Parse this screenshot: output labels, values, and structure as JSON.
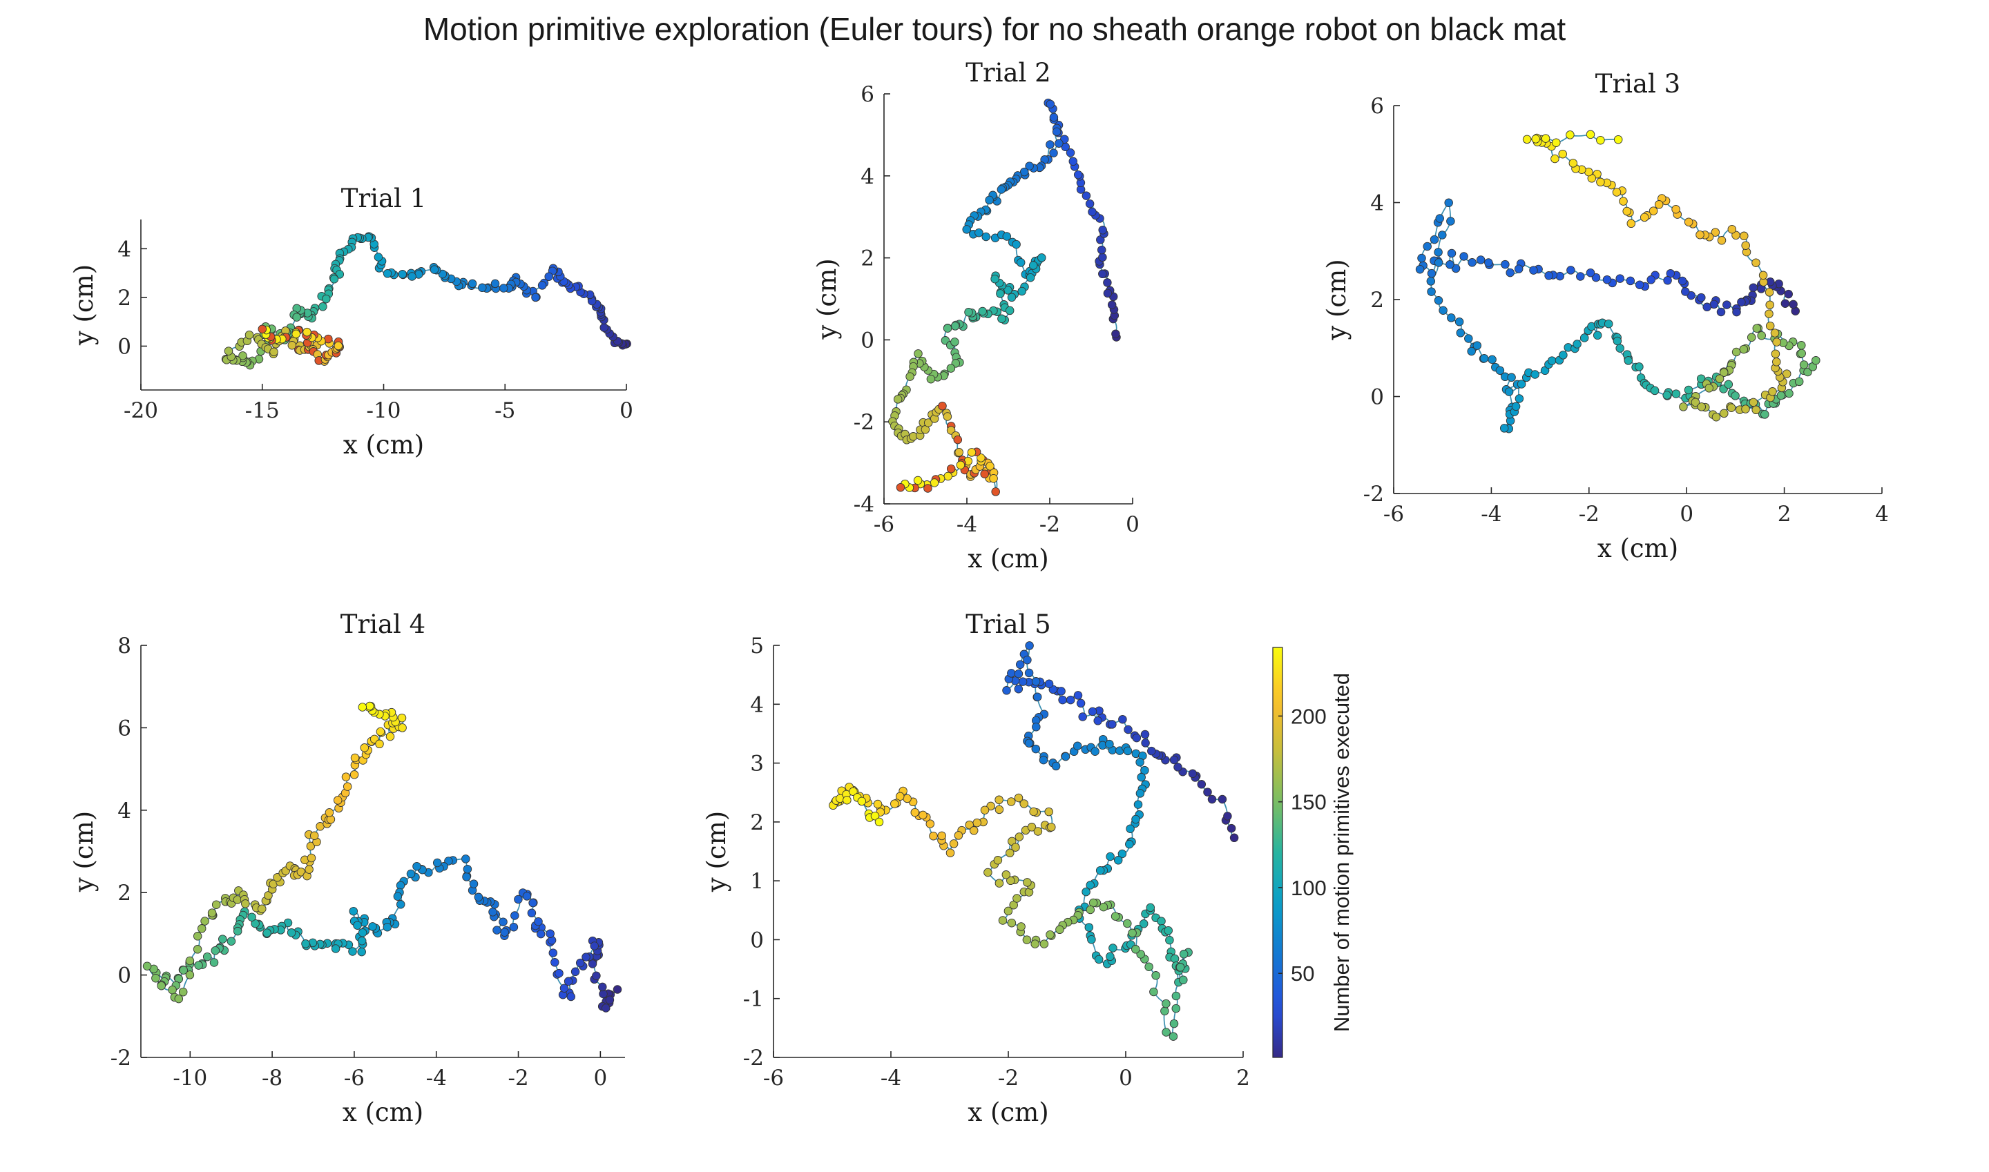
{
  "figure": {
    "title": "Motion primitive exploration (Euler tours) for no sheath orange robot on black mat"
  },
  "colorbar": {
    "label": "Number of motion primitives executed",
    "colormap": "parula",
    "range": [
      1,
      240
    ],
    "ticks": [
      50,
      100,
      150,
      200
    ]
  },
  "chart_data": [
    {
      "type": "scatter",
      "title": "Trial 1",
      "xlabel": "x (cm)",
      "ylabel": "y (cm)",
      "xlim": [
        -20,
        0
      ],
      "ylim": [
        -1.8,
        5.2
      ],
      "xticks": [
        -20,
        -15,
        -10,
        -5,
        0
      ],
      "yticks": [
        0,
        2,
        4
      ],
      "waypoints": [
        [
          0,
          0
        ],
        [
          -0.5,
          0.2
        ],
        [
          -1,
          1.2
        ],
        [
          -1.2,
          1.7
        ],
        [
          -2,
          2.4
        ],
        [
          -2.6,
          2.6
        ],
        [
          -3,
          3.2
        ],
        [
          -3.8,
          2
        ],
        [
          -4.5,
          2.7
        ],
        [
          -5,
          2.4
        ],
        [
          -6,
          2.5
        ],
        [
          -7,
          2.6
        ],
        [
          -8,
          3.2
        ],
        [
          -9,
          2.9
        ],
        [
          -10,
          3.1
        ],
        [
          -10.5,
          4.4
        ],
        [
          -11,
          4.4
        ],
        [
          -11.8,
          3.7
        ],
        [
          -12,
          3
        ],
        [
          -12.5,
          2
        ],
        [
          -13,
          1.2
        ],
        [
          -13.5,
          1.5
        ],
        [
          -14,
          0.3
        ],
        [
          -14.8,
          0.8
        ],
        [
          -15.3,
          -0.7
        ],
        [
          -16,
          -0.5
        ],
        [
          -16.5,
          -0.6
        ],
        [
          -15.5,
          0.5
        ],
        [
          -14.6,
          -0.3
        ],
        [
          -14,
          0.6
        ],
        [
          -13.5,
          -0.2
        ],
        [
          -13,
          0.1
        ],
        [
          -12.5,
          -0.6
        ],
        [
          -12,
          -0.2
        ],
        [
          -11.8,
          0.1
        ],
        [
          -12.8,
          0.4
        ],
        [
          -13.5,
          0.6
        ],
        [
          -14.5,
          0.2
        ],
        [
          -15,
          0.7
        ]
      ]
    },
    {
      "type": "scatter",
      "title": "Trial 2",
      "xlabel": "x (cm)",
      "ylabel": "y (cm)",
      "xlim": [
        -6,
        0
      ],
      "ylim": [
        -4,
        6
      ],
      "xticks": [
        -6,
        -4,
        -2,
        0
      ],
      "yticks": [
        -4,
        -2,
        0,
        2,
        4,
        6
      ],
      "waypoints": [
        [
          -0.4,
          0
        ],
        [
          -0.5,
          1
        ],
        [
          -0.8,
          1.8
        ],
        [
          -0.7,
          2.8
        ],
        [
          -1.2,
          3.6
        ],
        [
          -1.5,
          4.5
        ],
        [
          -2,
          5.8
        ],
        [
          -1.8,
          4.8
        ],
        [
          -2.3,
          4.2
        ],
        [
          -2.8,
          4
        ],
        [
          -3.2,
          3.6
        ],
        [
          -3.6,
          3.2
        ],
        [
          -4,
          2.7
        ],
        [
          -3,
          2.5
        ],
        [
          -2.5,
          1.5
        ],
        [
          -2.2,
          2
        ],
        [
          -2.8,
          1
        ],
        [
          -3.3,
          1.5
        ],
        [
          -3,
          0.6
        ],
        [
          -3.6,
          0.7
        ],
        [
          -4,
          0.5
        ],
        [
          -4.5,
          0.2
        ],
        [
          -4.2,
          -0.5
        ],
        [
          -4.8,
          -1
        ],
        [
          -5.2,
          -0.4
        ],
        [
          -5.5,
          -1.3
        ],
        [
          -5.8,
          -2
        ],
        [
          -5.4,
          -2.5
        ],
        [
          -5,
          -2
        ],
        [
          -4.6,
          -1.6
        ],
        [
          -4.2,
          -2.5
        ],
        [
          -4,
          -3.3
        ],
        [
          -3.6,
          -3
        ],
        [
          -3.3,
          -3.5
        ],
        [
          -3.8,
          -2.7
        ],
        [
          -4.4,
          -3.3
        ],
        [
          -5,
          -3.5
        ],
        [
          -5.6,
          -3.6
        ]
      ]
    },
    {
      "type": "scatter",
      "title": "Trial 3",
      "xlabel": "x (cm)",
      "ylabel": "y (cm)",
      "xlim": [
        -6,
        4
      ],
      "ylim": [
        -2,
        6
      ],
      "xticks": [
        -6,
        -4,
        -2,
        0,
        2,
        4
      ],
      "yticks": [
        -2,
        0,
        2,
        4,
        6
      ],
      "waypoints": [
        [
          2.2,
          1.8
        ],
        [
          1.8,
          2.4
        ],
        [
          1.4,
          2.1
        ],
        [
          1,
          1.8
        ],
        [
          0.3,
          2
        ],
        [
          -0.2,
          2.5
        ],
        [
          -1,
          2.3
        ],
        [
          -2,
          2.5
        ],
        [
          -3,
          2.6
        ],
        [
          -4,
          2.7
        ],
        [
          -4.8,
          2.8
        ],
        [
          -5.5,
          2.6
        ],
        [
          -4.9,
          3.9
        ],
        [
          -5.2,
          2.1
        ],
        [
          -4.5,
          1.2
        ],
        [
          -4,
          0.7
        ],
        [
          -3.5,
          0.2
        ],
        [
          -3.7,
          -0.7
        ],
        [
          -3.3,
          0.4
        ],
        [
          -2.6,
          0.8
        ],
        [
          -2,
          1.3
        ],
        [
          -1.6,
          1.4
        ],
        [
          -1.2,
          0.8
        ],
        [
          -0.8,
          0.2
        ],
        [
          -0.2,
          0
        ],
        [
          0.5,
          0.4
        ],
        [
          1,
          0
        ],
        [
          1.6,
          -0.3
        ],
        [
          2,
          0
        ],
        [
          2.6,
          0.6
        ],
        [
          2.2,
          1.1
        ],
        [
          1.5,
          1.4
        ],
        [
          1,
          0.8
        ],
        [
          0.7,
          0.4
        ],
        [
          0,
          -0.1
        ],
        [
          0.6,
          -0.3
        ],
        [
          1.3,
          -0.2
        ],
        [
          2,
          0.3
        ],
        [
          1.8,
          0.9
        ],
        [
          1.7,
          2.2
        ],
        [
          1.1,
          3.4
        ],
        [
          0.4,
          3.3
        ],
        [
          -0.4,
          4.1
        ],
        [
          -1.1,
          3.6
        ],
        [
          -1.5,
          4.4
        ],
        [
          -2.1,
          4.6
        ],
        [
          -2.9,
          5.2
        ],
        [
          -3.2,
          5.3
        ],
        [
          -1.4,
          5.3
        ]
      ]
    },
    {
      "type": "scatter",
      "title": "Trial 4",
      "xlabel": "x (cm)",
      "ylabel": "y (cm)",
      "xlim": [
        -11.2,
        0.6
      ],
      "ylim": [
        -2,
        8
      ],
      "xticks": [
        -10,
        -8,
        -6,
        -4,
        -2,
        0
      ],
      "yticks": [
        -2,
        0,
        2,
        4,
        6,
        8
      ],
      "waypoints": [
        [
          0.4,
          -0.4
        ],
        [
          0.1,
          -0.8
        ],
        [
          -0.2,
          0.2
        ],
        [
          0,
          0.8
        ],
        [
          -0.5,
          0.2
        ],
        [
          -0.9,
          -0.6
        ],
        [
          -1.2,
          0.8
        ],
        [
          -1.5,
          1.2
        ],
        [
          -1.8,
          2.1
        ],
        [
          -2.3,
          0.9
        ],
        [
          -2.6,
          1.7
        ],
        [
          -3,
          1.8
        ],
        [
          -3.4,
          2.8
        ],
        [
          -4.2,
          2.6
        ],
        [
          -4.8,
          2.4
        ],
        [
          -5,
          1.2
        ],
        [
          -5.5,
          1.1
        ],
        [
          -6,
          1.5
        ],
        [
          -5.8,
          0.6
        ],
        [
          -6.5,
          0.8
        ],
        [
          -7,
          0.7
        ],
        [
          -7.6,
          1.2
        ],
        [
          -8.2,
          1
        ],
        [
          -8.6,
          1.5
        ],
        [
          -9,
          0.9
        ],
        [
          -9.5,
          0.4
        ],
        [
          -10,
          0.2
        ],
        [
          -10.4,
          -0.2
        ],
        [
          -11,
          0.1
        ],
        [
          -10.2,
          -0.6
        ],
        [
          -9.7,
          1.2
        ],
        [
          -9.2,
          1.8
        ],
        [
          -8.8,
          2
        ],
        [
          -8.3,
          1.6
        ],
        [
          -8,
          2.2
        ],
        [
          -7.6,
          2.6
        ],
        [
          -7.2,
          2.4
        ],
        [
          -7,
          3.3
        ],
        [
          -6.6,
          3.8
        ],
        [
          -6.3,
          4.3
        ],
        [
          -6,
          5.2
        ],
        [
          -5.6,
          5.6
        ],
        [
          -5.2,
          5.8
        ],
        [
          -4.8,
          6.2
        ],
        [
          -5.4,
          6.4
        ],
        [
          -5.8,
          6.5
        ]
      ]
    },
    {
      "type": "scatter",
      "title": "Trial 5",
      "xlabel": "x (cm)",
      "ylabel": "y (cm)",
      "xlim": [
        -6,
        2
      ],
      "ylim": [
        -2,
        5
      ],
      "xticks": [
        -6,
        -4,
        -2,
        0,
        2
      ],
      "yticks": [
        -2,
        -1,
        0,
        1,
        2,
        3,
        4,
        5
      ],
      "waypoints": [
        [
          1.9,
          1.8
        ],
        [
          1.4,
          2.6
        ],
        [
          0.9,
          3
        ],
        [
          0.5,
          3.2
        ],
        [
          0,
          3.6
        ],
        [
          -0.5,
          3.8
        ],
        [
          -1,
          4.1
        ],
        [
          -1.5,
          4.4
        ],
        [
          -2,
          4.3
        ],
        [
          -1.7,
          4.9
        ],
        [
          -1.4,
          3.9
        ],
        [
          -1.7,
          3.3
        ],
        [
          -1.2,
          3
        ],
        [
          -0.6,
          3.3
        ],
        [
          -0.2,
          3.3
        ],
        [
          0.3,
          3.1
        ],
        [
          0.2,
          2.3
        ],
        [
          0.1,
          1.6
        ],
        [
          -0.4,
          1.2
        ],
        [
          -0.8,
          0.5
        ],
        [
          -0.4,
          -0.4
        ],
        [
          0,
          -0.1
        ],
        [
          0.4,
          0.5
        ],
        [
          0.7,
          0.1
        ],
        [
          0.9,
          -0.6
        ],
        [
          1,
          -0.3
        ],
        [
          0.8,
          -1.6
        ],
        [
          0.4,
          -0.5
        ],
        [
          0,
          0.3
        ],
        [
          -0.5,
          0.7
        ],
        [
          -1,
          0.3
        ],
        [
          -1.5,
          -0.1
        ],
        [
          -2,
          0.4
        ],
        [
          -1.6,
          0.9
        ],
        [
          -2.3,
          1.1
        ],
        [
          -1.8,
          1.8
        ],
        [
          -1.2,
          2
        ],
        [
          -2,
          2.4
        ],
        [
          -2.5,
          2
        ],
        [
          -3,
          1.5
        ],
        [
          -3.4,
          2
        ],
        [
          -3.8,
          2.5
        ],
        [
          -4.2,
          2.2
        ],
        [
          -4.7,
          2.6
        ],
        [
          -5,
          2.3
        ],
        [
          -4.6,
          2.5
        ],
        [
          -4.2,
          2
        ]
      ]
    }
  ]
}
